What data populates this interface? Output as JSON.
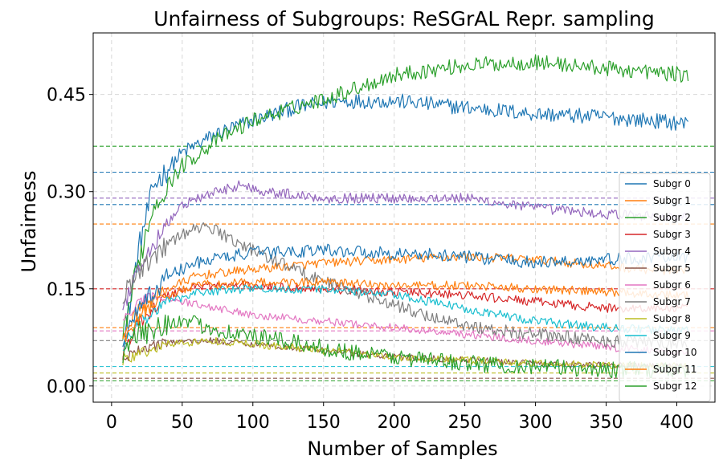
{
  "chart_data": {
    "type": "line",
    "title": "Unfairness of Subgroups: ReSGrAL Repr. sampling",
    "xlabel": "Number of Samples",
    "ylabel": "Unfairness",
    "xlim": [
      -13,
      427
    ],
    "ylim": [
      -0.025,
      0.545
    ],
    "xticks": [
      0,
      50,
      100,
      150,
      200,
      250,
      300,
      350,
      400
    ],
    "yticks": [
      0.0,
      0.15,
      0.3,
      0.45
    ],
    "ytick_labels": [
      "0.00",
      "0.15",
      "0.30",
      "0.45"
    ],
    "grid": true,
    "legend_position": "right",
    "x_range": [
      8,
      408
    ],
    "series": [
      {
        "name": "Subgr 0",
        "color": "#1f77b4",
        "noise": 0.012,
        "points": [
          [
            8,
            0.06
          ],
          [
            20,
            0.22
          ],
          [
            30,
            0.31
          ],
          [
            50,
            0.36
          ],
          [
            75,
            0.39
          ],
          [
            100,
            0.41
          ],
          [
            130,
            0.43
          ],
          [
            160,
            0.44
          ],
          [
            200,
            0.44
          ],
          [
            250,
            0.43
          ],
          [
            300,
            0.42
          ],
          [
            350,
            0.415
          ],
          [
            408,
            0.405
          ]
        ]
      },
      {
        "name": "Subgr 1",
        "color": "#ff7f0e",
        "noise": 0.007,
        "points": [
          [
            8,
            0.08
          ],
          [
            20,
            0.12
          ],
          [
            40,
            0.15
          ],
          [
            60,
            0.17
          ],
          [
            100,
            0.18
          ],
          [
            150,
            0.19
          ],
          [
            200,
            0.195
          ],
          [
            250,
            0.2
          ],
          [
            300,
            0.195
          ],
          [
            350,
            0.185
          ],
          [
            408,
            0.175
          ]
        ]
      },
      {
        "name": "Subgr 2",
        "color": "#2ca02c",
        "noise": 0.012,
        "points": [
          [
            8,
            0.08
          ],
          [
            20,
            0.2
          ],
          [
            30,
            0.28
          ],
          [
            50,
            0.34
          ],
          [
            75,
            0.38
          ],
          [
            100,
            0.41
          ],
          [
            130,
            0.43
          ],
          [
            160,
            0.45
          ],
          [
            200,
            0.48
          ],
          [
            250,
            0.495
          ],
          [
            300,
            0.5
          ],
          [
            350,
            0.49
          ],
          [
            408,
            0.48
          ]
        ]
      },
      {
        "name": "Subgr 3",
        "color": "#d62728",
        "noise": 0.007,
        "points": [
          [
            8,
            0.05
          ],
          [
            20,
            0.1
          ],
          [
            40,
            0.14
          ],
          [
            60,
            0.155
          ],
          [
            100,
            0.155
          ],
          [
            150,
            0.15
          ],
          [
            200,
            0.145
          ],
          [
            250,
            0.14
          ],
          [
            300,
            0.13
          ],
          [
            350,
            0.12
          ],
          [
            408,
            0.12
          ]
        ]
      },
      {
        "name": "Subgr 4",
        "color": "#9467bd",
        "noise": 0.008,
        "points": [
          [
            8,
            0.12
          ],
          [
            20,
            0.18
          ],
          [
            30,
            0.22
          ],
          [
            50,
            0.28
          ],
          [
            75,
            0.3
          ],
          [
            90,
            0.31
          ],
          [
            110,
            0.3
          ],
          [
            150,
            0.29
          ],
          [
            200,
            0.29
          ],
          [
            250,
            0.29
          ],
          [
            300,
            0.275
          ],
          [
            350,
            0.265
          ],
          [
            408,
            0.26
          ]
        ]
      },
      {
        "name": "Subgr 5",
        "color": "#8c564b",
        "noise": 0.005,
        "points": [
          [
            8,
            0.04
          ],
          [
            20,
            0.055
          ],
          [
            40,
            0.068
          ],
          [
            70,
            0.07
          ],
          [
            100,
            0.065
          ],
          [
            150,
            0.055
          ],
          [
            200,
            0.045
          ],
          [
            250,
            0.04
          ],
          [
            300,
            0.035
          ],
          [
            350,
            0.032
          ],
          [
            408,
            0.03
          ]
        ]
      },
      {
        "name": "Subgr 6",
        "color": "#e377c2",
        "noise": 0.006,
        "points": [
          [
            8,
            0.1
          ],
          [
            20,
            0.13
          ],
          [
            35,
            0.14
          ],
          [
            50,
            0.13
          ],
          [
            75,
            0.12
          ],
          [
            100,
            0.11
          ],
          [
            150,
            0.1
          ],
          [
            200,
            0.09
          ],
          [
            250,
            0.08
          ],
          [
            300,
            0.07
          ],
          [
            350,
            0.06
          ],
          [
            408,
            0.05
          ]
        ]
      },
      {
        "name": "Subgr 7",
        "color": "#7f7f7f",
        "noise": 0.01,
        "points": [
          [
            8,
            0.14
          ],
          [
            20,
            0.18
          ],
          [
            40,
            0.22
          ],
          [
            55,
            0.24
          ],
          [
            70,
            0.245
          ],
          [
            90,
            0.22
          ],
          [
            110,
            0.2
          ],
          [
            140,
            0.17
          ],
          [
            180,
            0.14
          ],
          [
            220,
            0.11
          ],
          [
            260,
            0.09
          ],
          [
            300,
            0.08
          ],
          [
            350,
            0.07
          ],
          [
            408,
            0.065
          ]
        ]
      },
      {
        "name": "Subgr 8",
        "color": "#bcbd22",
        "noise": 0.006,
        "points": [
          [
            8,
            0.04
          ],
          [
            20,
            0.05
          ],
          [
            40,
            0.065
          ],
          [
            70,
            0.07
          ],
          [
            100,
            0.065
          ],
          [
            150,
            0.055
          ],
          [
            200,
            0.045
          ],
          [
            250,
            0.04
          ],
          [
            300,
            0.035
          ],
          [
            350,
            0.032
          ],
          [
            408,
            0.03
          ]
        ]
      },
      {
        "name": "Subgr 9",
        "color": "#17becf",
        "noise": 0.007,
        "points": [
          [
            8,
            0.06
          ],
          [
            20,
            0.1
          ],
          [
            40,
            0.13
          ],
          [
            60,
            0.145
          ],
          [
            100,
            0.15
          ],
          [
            150,
            0.15
          ],
          [
            200,
            0.14
          ],
          [
            250,
            0.12
          ],
          [
            300,
            0.1
          ],
          [
            350,
            0.09
          ],
          [
            408,
            0.085
          ]
        ]
      },
      {
        "name": "Subgr 10",
        "color": "#1f77b4",
        "noise": 0.01,
        "points": [
          [
            8,
            0.07
          ],
          [
            20,
            0.12
          ],
          [
            40,
            0.17
          ],
          [
            60,
            0.19
          ],
          [
            80,
            0.2
          ],
          [
            100,
            0.205
          ],
          [
            150,
            0.21
          ],
          [
            200,
            0.205
          ],
          [
            250,
            0.2
          ],
          [
            300,
            0.19
          ],
          [
            350,
            0.195
          ],
          [
            408,
            0.2
          ]
        ]
      },
      {
        "name": "Subgr 11",
        "color": "#ff7f0e",
        "noise": 0.007,
        "points": [
          [
            8,
            0.07
          ],
          [
            20,
            0.11
          ],
          [
            40,
            0.14
          ],
          [
            60,
            0.155
          ],
          [
            100,
            0.16
          ],
          [
            150,
            0.16
          ],
          [
            200,
            0.155
          ],
          [
            250,
            0.155
          ],
          [
            300,
            0.15
          ],
          [
            350,
            0.145
          ],
          [
            408,
            0.14
          ]
        ]
      },
      {
        "name": "Subgr 12",
        "color": "#2ca02c",
        "noise": 0.013,
        "points": [
          [
            8,
            0.05
          ],
          [
            20,
            0.08
          ],
          [
            40,
            0.1
          ],
          [
            60,
            0.095
          ],
          [
            90,
            0.08
          ],
          [
            120,
            0.07
          ],
          [
            160,
            0.055
          ],
          [
            200,
            0.045
          ],
          [
            250,
            0.035
          ],
          [
            300,
            0.03
          ],
          [
            350,
            0.025
          ],
          [
            408,
            0.025
          ]
        ]
      }
    ],
    "reference_lines": [
      {
        "y": 0.37,
        "color": "#2ca02c"
      },
      {
        "y": 0.33,
        "color": "#1f77b4"
      },
      {
        "y": 0.29,
        "color": "#9467bd"
      },
      {
        "y": 0.28,
        "color": "#1f77b4"
      },
      {
        "y": 0.25,
        "color": "#ff7f0e"
      },
      {
        "y": 0.15,
        "color": "#d62728"
      },
      {
        "y": 0.09,
        "color": "#ff7f0e"
      },
      {
        "y": 0.085,
        "color": "#e377c2"
      },
      {
        "y": 0.07,
        "color": "#7f7f7f"
      },
      {
        "y": 0.03,
        "color": "#17becf"
      },
      {
        "y": 0.02,
        "color": "#bcbd22"
      },
      {
        "y": 0.012,
        "color": "#8c564b"
      },
      {
        "y": 0.008,
        "color": "#2ca02c"
      }
    ]
  }
}
